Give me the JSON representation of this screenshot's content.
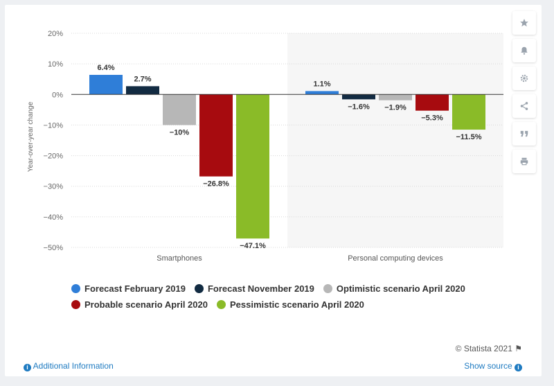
{
  "chart_data": {
    "type": "bar",
    "categories": [
      "Smartphones",
      "Personal computing devices"
    ],
    "series": [
      {
        "name": "Forecast February 2019",
        "color": "#2f7ed8",
        "values": [
          6.4,
          1.1
        ],
        "labels": [
          "6.4%",
          "1.1%"
        ]
      },
      {
        "name": "Forecast November 2019",
        "color": "#122b42",
        "values": [
          2.7,
          -1.6
        ],
        "labels": [
          "2.7%",
          "−1.6%"
        ]
      },
      {
        "name": "Optimistic scenario April 2020",
        "color": "#b7b7b7",
        "values": [
          -10,
          -1.9
        ],
        "labels": [
          "−10%",
          "−1.9%"
        ]
      },
      {
        "name": "Probable scenario April 2020",
        "color": "#a70b0f",
        "values": [
          -26.8,
          -5.3
        ],
        "labels": [
          "−26.8%",
          "−5.3%"
        ]
      },
      {
        "name": "Pessimistic scenario April 2020",
        "color": "#8abb28",
        "values": [
          -47.1,
          -11.5
        ],
        "labels": [
          "−47.1%",
          "−11.5%"
        ]
      }
    ],
    "ylabel": "Year-over-year change",
    "ylim": [
      -50,
      20
    ],
    "yticks": [
      20,
      10,
      0,
      -10,
      -20,
      -30,
      -40,
      -50
    ],
    "ytick_labels": [
      "20%",
      "10%",
      "0%",
      "−10%",
      "−20%",
      "−30%",
      "−40%",
      "−50%"
    ],
    "grid": true,
    "legend_position": "bottom"
  },
  "legend_rows": [
    [
      0,
      1,
      2
    ],
    [
      3,
      4
    ]
  ],
  "toolbar": {
    "icons": [
      "star-icon",
      "bell-icon",
      "gear-icon",
      "share-icon",
      "quote-icon",
      "print-icon"
    ]
  },
  "footer": {
    "copyright": "© Statista 2021",
    "additional_info": "Additional Information",
    "show_source": "Show source"
  }
}
